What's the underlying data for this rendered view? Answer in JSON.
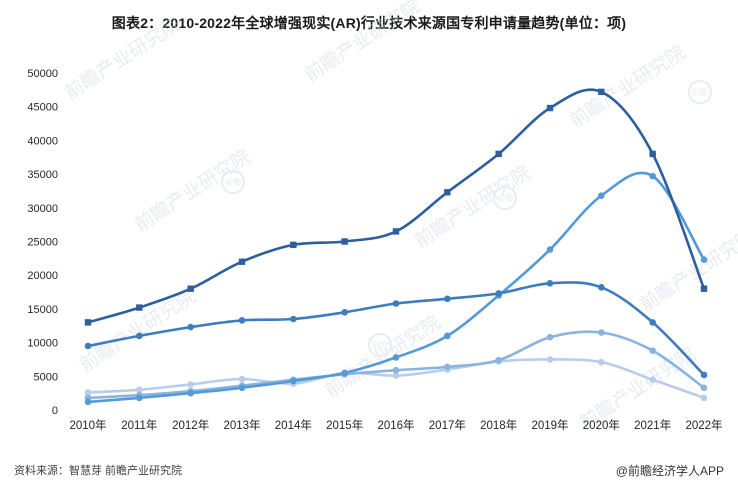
{
  "title": "图表2：2010-2022年全球增强现实(AR)行业技术来源国专利申请量趋势(单位：项)",
  "footer": {
    "source": "资料来源：智慧芽 前瞻产业研究院",
    "credit": "@前瞻经济学人APP"
  },
  "watermark": {
    "text": "前瞻产业研究院",
    "logo_text": "前瞻"
  },
  "chart_data": {
    "type": "line",
    "title": "图表2：2010-2022年全球增强现实(AR)行业技术来源国专利申请量趋势(单位：项)",
    "categories": [
      "2010年",
      "2011年",
      "2012年",
      "2013年",
      "2014年",
      "2015年",
      "2016年",
      "2017年",
      "2018年",
      "2019年",
      "2020年",
      "2021年",
      "2022年"
    ],
    "ylim": [
      0,
      50000
    ],
    "ytick_step": 5000,
    "grid": false,
    "legend_position": "none",
    "xlabel": "",
    "ylabel": "",
    "series": [
      {
        "name": "series-1",
        "color": "#2c5f9c",
        "marker": "square",
        "values": [
          13000,
          15200,
          18000,
          22000,
          24500,
          25000,
          26500,
          32300,
          38000,
          44800,
          47200,
          38000,
          18000
        ]
      },
      {
        "name": "series-2",
        "color": "#3d7cc0",
        "marker": "circle",
        "values": [
          9500,
          11000,
          12300,
          13300,
          13500,
          14500,
          15800,
          16500,
          17300,
          18800,
          18200,
          13000,
          5200
        ]
      },
      {
        "name": "series-3",
        "color": "#549ad8",
        "marker": "circle",
        "values": [
          1200,
          1800,
          2500,
          3300,
          4300,
          5500,
          7800,
          11000,
          17000,
          23800,
          31800,
          34700,
          22300
        ]
      },
      {
        "name": "series-4",
        "color": "#8ab4e0",
        "marker": "circle",
        "values": [
          1800,
          2200,
          2800,
          3600,
          4500,
          5300,
          5900,
          6400,
          7400,
          10800,
          11500,
          8800,
          3300
        ]
      },
      {
        "name": "series-5",
        "color": "#b9cde8",
        "marker": "circle",
        "values": [
          2600,
          3000,
          3800,
          4600,
          3900,
          5500,
          5100,
          6000,
          7200,
          7500,
          7100,
          4500,
          1800
        ]
      }
    ]
  }
}
